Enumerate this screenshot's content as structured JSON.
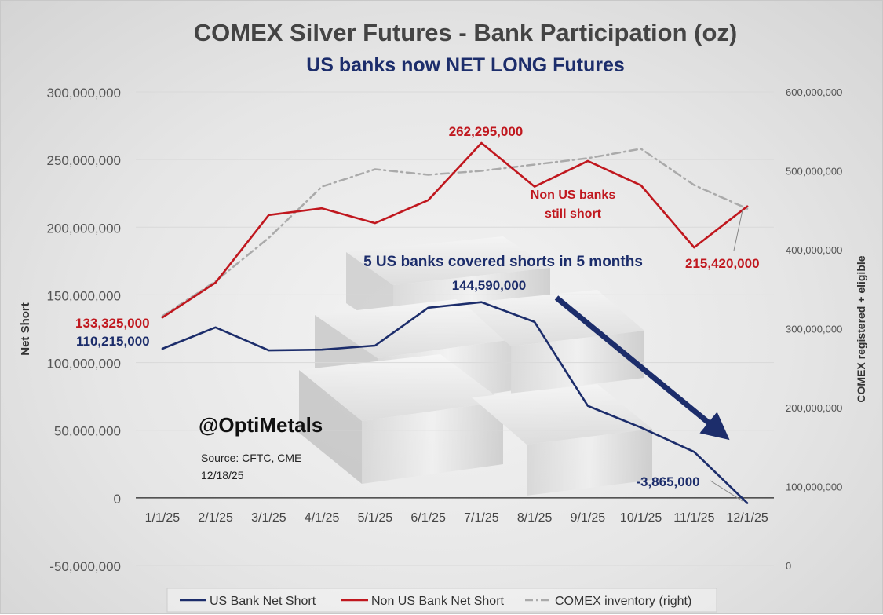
{
  "chart_data": {
    "type": "line",
    "title": "COMEX Silver Futures - Bank Participation (oz)",
    "subtitle": "US banks now NET LONG Futures",
    "ylabel": "Net Short",
    "y2label": "COMEX registered + eligible",
    "categories": [
      "1/1/25",
      "2/1/25",
      "3/1/25",
      "4/1/25",
      "5/1/25",
      "6/1/25",
      "7/1/25",
      "8/1/25",
      "9/1/25",
      "10/1/25",
      "11/1/25",
      "12/1/25"
    ],
    "ylim": [
      -50000000,
      300000000
    ],
    "y_ticks": [
      -50000000,
      0,
      50000000,
      100000000,
      150000000,
      200000000,
      250000000,
      300000000
    ],
    "y_tick_labels": [
      "-50,000,000",
      "0",
      "50,000,000",
      "100,000,000",
      "150,000,000",
      "200,000,000",
      "250,000,000",
      "300,000,000"
    ],
    "y2lim": [
      0,
      600000000
    ],
    "y2_ticks": [
      0,
      100000000,
      200000000,
      300000000,
      400000000,
      500000000,
      600000000
    ],
    "y2_tick_labels": [
      "0",
      "100,000,000",
      "200,000,000",
      "300,000,000",
      "400,000,000",
      "500,000,000",
      "600,000,000"
    ],
    "grid": "horizontal",
    "legend_position": "bottom",
    "series": [
      {
        "name": "US Bank Net Short",
        "axis": "left",
        "color": "#1c2d6b",
        "style": "solid",
        "values": [
          110215000,
          126000000,
          109000000,
          109500000,
          112500000,
          140500000,
          144590000,
          130000000,
          68000000,
          52000000,
          34000000,
          -3865000
        ]
      },
      {
        "name": "Non US Bank Net Short",
        "axis": "left",
        "color": "#c0171e",
        "style": "solid",
        "values": [
          133325000,
          159000000,
          209000000,
          214000000,
          203000000,
          220000000,
          262295000,
          230000000,
          249000000,
          231000000,
          185000000,
          215420000
        ]
      },
      {
        "name": "COMEX inventory (right)",
        "axis": "right",
        "color": "#aaaaaa",
        "style": "dashdot",
        "values": [
          316000000,
          360000000,
          415000000,
          480000000,
          502000000,
          495000000,
          500000000,
          508000000,
          516000000,
          528000000,
          482000000,
          452000000
        ]
      }
    ],
    "annotations": [
      {
        "id": "us_first",
        "text": "110,215,000",
        "color": "#1c2d6b"
      },
      {
        "id": "nonus_first",
        "text": "133,325,000",
        "color": "#c0171e"
      },
      {
        "id": "nonus_peak",
        "text": "262,295,000",
        "color": "#c0171e"
      },
      {
        "id": "nonus_last",
        "text": "215,420,000",
        "color": "#c0171e"
      },
      {
        "id": "us_peak",
        "text": "144,590,000",
        "color": "#1c2d6b"
      },
      {
        "id": "us_last",
        "text": "-3,865,000",
        "color": "#1c2d6b"
      },
      {
        "id": "nonus_note_1",
        "text": "Non US banks",
        "color": "#c0171e"
      },
      {
        "id": "nonus_note_2",
        "text": "still short",
        "color": "#c0171e"
      },
      {
        "id": "us_note",
        "text": "5 US banks covered shorts in 5 months",
        "color": "#1c2d6b"
      }
    ],
    "watermark": "@OptiMetals",
    "source_line_1": "Source: CFTC, CME",
    "source_line_2": "12/18/25"
  }
}
